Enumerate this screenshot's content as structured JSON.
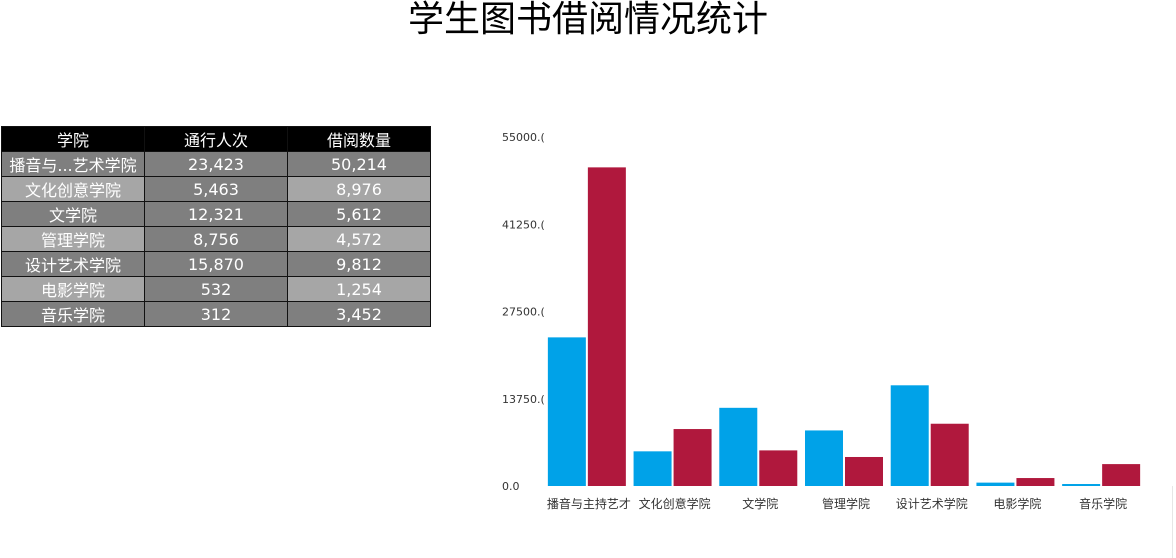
{
  "title": "学生图书借阅情况统计",
  "table": {
    "headers": [
      "学院",
      "通行人次",
      "借阅数量"
    ],
    "rows": [
      [
        "播音与...艺术学院",
        "23,423",
        "50,214"
      ],
      [
        "文化创意学院",
        "5,463",
        "8,976"
      ],
      [
        "文学院",
        "12,321",
        "5,612"
      ],
      [
        "管理学院",
        "8,756",
        "4,572"
      ],
      [
        "设计艺术学院",
        "15,870",
        "9,812"
      ],
      [
        "电影学院",
        "532",
        "1,254"
      ],
      [
        "音乐学院",
        "312",
        "3,452"
      ]
    ]
  },
  "chart_data": {
    "type": "bar",
    "categories": [
      "播音与主持艺术学院",
      "文化创意学院",
      "文学院",
      "管理学院",
      "设计艺术学院",
      "电影学院",
      "音乐学院"
    ],
    "category_labels": [
      "播音与主持艺才",
      "文化创意学院",
      "文学院",
      "管理学院",
      "设计艺术学院",
      "电影学院",
      "音乐学院"
    ],
    "series": [
      {
        "values": [
          23423,
          5463,
          12321,
          8756,
          15870,
          532,
          312
        ],
        "color": "#00a2e8"
      },
      {
        "values": [
          50214,
          8976,
          5612,
          4572,
          9812,
          1254,
          3452
        ],
        "color": "#b0183d"
      }
    ],
    "ylim": [
      0,
      55000
    ],
    "yticks": [
      0,
      13750,
      27500,
      41250,
      55000
    ],
    "ytick_labels": [
      "0.0",
      "13750.(",
      "27500.(",
      "41250.(",
      "55000.("
    ],
    "grid": false
  }
}
